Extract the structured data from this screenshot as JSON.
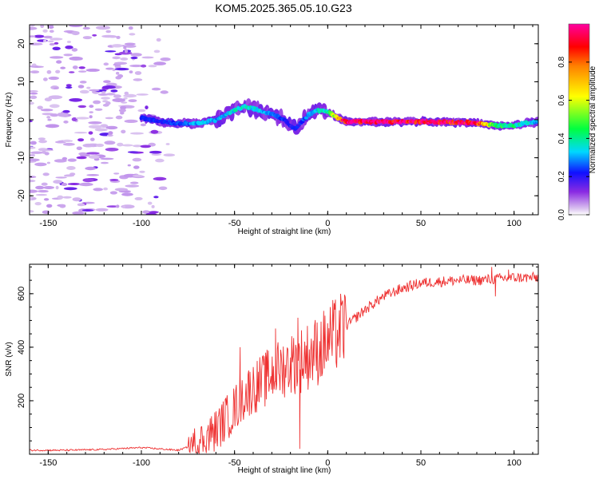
{
  "title": "KOM5.2025.365.05.10.G23",
  "chart_data": [
    {
      "type": "heatmap",
      "name": "spectrogram",
      "xlabel": "Height of straight line (km)",
      "ylabel": "Frequency (Hz)",
      "xlim": [
        -160,
        113
      ],
      "ylim": [
        -25,
        25
      ],
      "xticks": [
        -150,
        -100,
        -50,
        0,
        50,
        100
      ],
      "yticks": [
        -20,
        -10,
        0,
        10,
        20
      ],
      "colorbar": {
        "label": "Normalized spectral amplitude",
        "range": [
          0,
          1
        ],
        "ticks": [
          "0.0",
          "0.2",
          "0.4",
          "0.6",
          "0.8"
        ]
      },
      "ridge": {
        "x": [
          -100,
          -90,
          -80,
          -70,
          -60,
          -50,
          -45,
          -40,
          -35,
          -30,
          -25,
          -20,
          -17,
          -15,
          -10,
          -5,
          0,
          10,
          20,
          50,
          80,
          90,
          100,
          105,
          113
        ],
        "y": [
          0.5,
          -0.5,
          -1.0,
          -1.0,
          0.0,
          2.5,
          3.5,
          3.0,
          2.0,
          1.5,
          0.5,
          -1.5,
          -2.5,
          -1.0,
          1.5,
          2.5,
          2.0,
          -0.5,
          -0.5,
          -0.5,
          -0.8,
          -1.5,
          -1.5,
          -1.0,
          -0.5
        ],
        "amplitude": [
          0.22,
          0.22,
          0.25,
          0.3,
          0.3,
          0.35,
          0.38,
          0.35,
          0.3,
          0.28,
          0.25,
          0.2,
          0.22,
          0.22,
          0.3,
          0.35,
          0.4,
          0.95,
          0.95,
          0.95,
          0.9,
          0.45,
          0.4,
          0.35,
          0.3
        ]
      },
      "noise_region_x": [
        -160,
        -80
      ]
    },
    {
      "type": "line",
      "name": "snr",
      "xlabel": "Height of straight line (km)",
      "ylabel": "SNR (v/v)",
      "xlim": [
        -160,
        113
      ],
      "ylim": [
        0,
        710
      ],
      "xticks": [
        -150,
        -100,
        -50,
        0,
        50,
        100
      ],
      "yticks": [
        200,
        400,
        600
      ],
      "series": [
        {
          "name": "SNR",
          "color": "#ee3030",
          "x": [
            -160,
            -140,
            -120,
            -100,
            -80,
            -70,
            -60,
            -50,
            -45,
            -40,
            -35,
            -30,
            -25,
            -20,
            -15,
            -10,
            -5,
            0,
            10,
            20,
            30,
            40,
            50,
            60,
            70,
            80,
            90,
            100,
            113
          ],
          "y": [
            15,
            15,
            18,
            25,
            15,
            40,
            90,
            170,
            220,
            250,
            270,
            300,
            320,
            340,
            350,
            370,
            390,
            420,
            480,
            540,
            590,
            620,
            640,
            645,
            650,
            650,
            655,
            660,
            660
          ],
          "spikes": [
            {
              "x": -55,
              "y": 205
            },
            {
              "x": -47,
              "y": 400
            },
            {
              "x": -33,
              "y": 360
            },
            {
              "x": -28,
              "y": 470
            },
            {
              "x": -16,
              "y": 510
            },
            {
              "x": -15,
              "y": 20
            },
            {
              "x": 88,
              "y": 700
            },
            {
              "x": 97,
              "y": 690
            },
            {
              "x": 90,
              "y": 590
            }
          ]
        }
      ]
    }
  ]
}
